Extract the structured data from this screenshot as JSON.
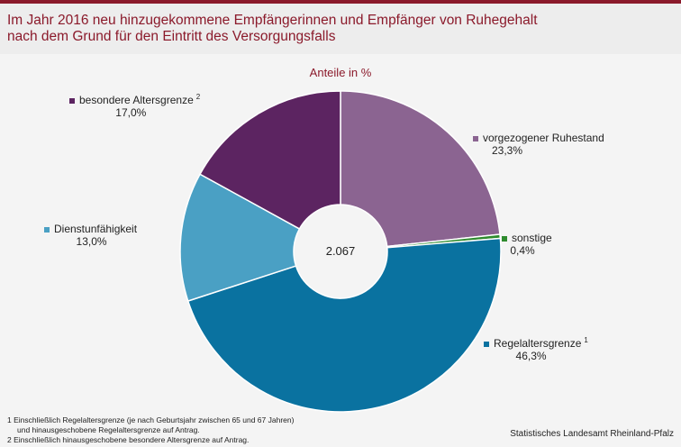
{
  "title": {
    "line1": "Im Jahr 2016 neu hinzugekommene Empfängerinnen und Empfänger von Ruhegehalt",
    "line2": "nach dem Grund für den Eintritt des Versorgungsfalls"
  },
  "chart_data": {
    "type": "pie",
    "subtitle": "Anteile in %",
    "center_label": "2.067",
    "slices": [
      {
        "name": "vorgezogener Ruhestand",
        "sup": "",
        "value": 23.3,
        "label": "23,3%",
        "color": "#8b6491"
      },
      {
        "name": "sonstige",
        "sup": "",
        "value": 0.4,
        "label": "0,4%",
        "color": "#2e8b2e"
      },
      {
        "name": "Regelaltersgrenze",
        "sup": "1",
        "value": 46.3,
        "label": "46,3%",
        "color": "#0a72a0"
      },
      {
        "name": "Dienstunfähigkeit",
        "sup": "",
        "value": 13.0,
        "label": "13,0%",
        "color": "#4aa0c4"
      },
      {
        "name": "besondere Altersgrenze",
        "sup": "2",
        "value": 17.0,
        "label": "17,0%",
        "color": "#5c2461"
      }
    ]
  },
  "footnotes": {
    "f1a": "1 Einschließlich Regelaltersgrenze (je nach Geburtsjahr zwischen 65 und 67 Jahren)",
    "f1b": "und hinausgeschobene Regelaltersgrenze auf Antrag.",
    "f2": "2 Einschließlich hinausgeschobene besondere Altersgrenze auf Antrag."
  },
  "source": "Statistisches Landesamt Rheinland-Pfalz"
}
